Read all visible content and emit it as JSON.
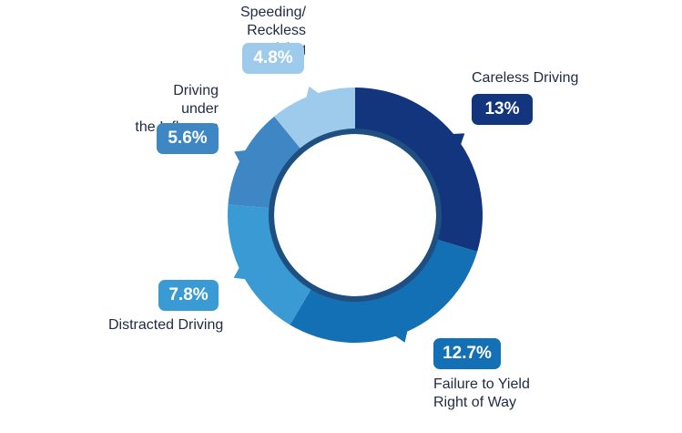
{
  "chart_data": {
    "type": "pie",
    "variant": "donut",
    "title": "",
    "slices": [
      {
        "label": "Careless Driving",
        "value_label": "13%",
        "value": 13,
        "color": "#12357d"
      },
      {
        "label": "Failure to Yield\nRight of Way",
        "value_label": "12.7%",
        "value": 12.7,
        "color": "#1470b5"
      },
      {
        "label": "Distracted Driving",
        "value_label": "7.8%",
        "value": 7.8,
        "color": "#3a9ad3"
      },
      {
        "label": "Driving under\nthe Influence",
        "value_label": "5.6%",
        "value": 5.6,
        "color": "#3f87c4"
      },
      {
        "label": "Speeding/\nReckless Driving",
        "value_label": "4.8%",
        "value": 4.8,
        "color": "#9ecbec"
      }
    ]
  }
}
